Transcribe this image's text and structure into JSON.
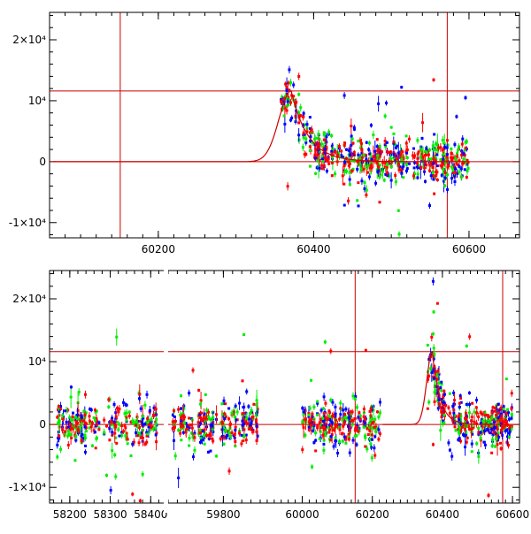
{
  "chart_data": [
    {
      "type": "scatter",
      "panel": "top",
      "title": "",
      "xlabel": "",
      "ylabel": "",
      "xlim": [
        60060,
        60665
      ],
      "ylim": [
        -12500,
        24500
      ],
      "x_ticks": [
        60200,
        60400,
        60600
      ],
      "x_tick_labels": [
        "60200",
        "60400",
        "60600"
      ],
      "y_ticks": [
        -10000,
        0,
        10000,
        20000
      ],
      "y_tick_labels": [
        "-1×10⁴",
        "0",
        "10⁴",
        "2×10⁴"
      ],
      "grid": false,
      "legend": "none",
      "series": [
        {
          "color": "#0000ff",
          "marker": "point-with-errorbar",
          "x_range": [
            60355,
            60600
          ]
        },
        {
          "color": "#00ee00",
          "marker": "point-with-errorbar",
          "x_range": [
            60355,
            60600
          ]
        },
        {
          "color": "#ff0000",
          "marker": "point-with-errorbar",
          "x_range": [
            60355,
            60600
          ]
        }
      ],
      "model_curve": {
        "color": "#cc0000",
        "shape": "rise-peak-decay",
        "peak_x": 60371,
        "peak_y": 11600,
        "baseline_y": 0,
        "x_range": [
          60065,
          60600
        ]
      },
      "reference_lines": {
        "color": "#cc0000",
        "vertical_x": [
          60151,
          60572
        ],
        "horizontal_y": [
          0,
          11600
        ]
      }
    },
    {
      "type": "scatter",
      "panel": "bottom",
      "title": "",
      "xlabel": "",
      "ylabel": "",
      "broken_axis": true,
      "segments": [
        {
          "xlim": [
            58150,
            58430
          ],
          "x_ticks": [
            58200,
            58300,
            58400
          ],
          "x_tick_labels": [
            "58200",
            "58300",
            "58400"
          ],
          "data_x_range": [
            58165,
            58415
          ]
        },
        {
          "xlim": [
            59680,
            59880
          ],
          "x_ticks": [
            59800
          ],
          "x_tick_labels": [
            "59800"
          ],
          "data_x_range": [
            59690,
            59875
          ]
        },
        {
          "xlim": [
            59880,
            60620
          ],
          "x_ticks": [
            60000,
            60200,
            60400,
            60600
          ],
          "x_tick_labels": [
            "60000",
            "60200",
            "60400",
            "60600"
          ],
          "data_x_range": [
            60000,
            60600
          ]
        }
      ],
      "ylim": [
        -12500,
        24500
      ],
      "y_ticks": [
        -10000,
        0,
        10000,
        20000
      ],
      "y_tick_labels": [
        "-1×10⁴",
        "0",
        "10⁴",
        "2×10⁴"
      ],
      "grid": false,
      "legend": "none",
      "series": [
        {
          "color": "#0000ff",
          "marker": "point-with-errorbar"
        },
        {
          "color": "#00ee00",
          "marker": "point-with-errorbar"
        },
        {
          "color": "#ff0000",
          "marker": "point-with-errorbar"
        }
      ],
      "model_curve": {
        "color": "#cc0000",
        "shape": "rise-peak-decay",
        "peak_x": 60371,
        "peak_y": 11600,
        "baseline_y": 0,
        "x_range": [
          60230,
          60600
        ]
      },
      "reference_lines": {
        "color": "#cc0000",
        "vertical_x": [
          60151,
          60572
        ],
        "horizontal_y": [
          0,
          11600
        ]
      }
    }
  ]
}
